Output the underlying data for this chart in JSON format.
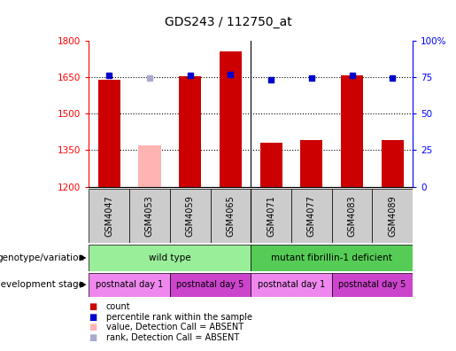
{
  "title": "GDS243 / 112750_at",
  "samples": [
    "GSM4047",
    "GSM4053",
    "GSM4059",
    "GSM4065",
    "GSM4071",
    "GSM4077",
    "GSM4083",
    "GSM4089"
  ],
  "bar_values": [
    1638,
    1370,
    1653,
    1755,
    1382,
    1393,
    1655,
    1390
  ],
  "bar_absent": [
    false,
    true,
    false,
    false,
    false,
    false,
    false,
    false
  ],
  "rank_values": [
    76,
    74,
    76,
    77,
    73,
    74,
    76,
    74
  ],
  "rank_absent": [
    false,
    true,
    false,
    false,
    false,
    false,
    false,
    false
  ],
  "ylim_left": [
    1200,
    1800
  ],
  "ylim_right": [
    0,
    100
  ],
  "yticks_left": [
    1200,
    1350,
    1500,
    1650,
    1800
  ],
  "yticks_right": [
    0,
    25,
    50,
    75,
    100
  ],
  "bar_color_normal": "#cc0000",
  "bar_color_absent": "#ffb3b3",
  "rank_color_normal": "#0000cc",
  "rank_color_absent": "#aaaacc",
  "bar_width": 0.55,
  "genotype_groups": [
    {
      "label": "wild type",
      "start": 0,
      "end": 3,
      "color": "#99ee99"
    },
    {
      "label": "mutant fibrillin-1 deficient",
      "start": 4,
      "end": 7,
      "color": "#55cc55"
    }
  ],
  "dev_stage_groups": [
    {
      "label": "postnatal day 1",
      "start": 0,
      "end": 1,
      "color": "#ee88ee"
    },
    {
      "label": "postnatal day 5",
      "start": 2,
      "end": 3,
      "color": "#cc44cc"
    },
    {
      "label": "postnatal day 1",
      "start": 4,
      "end": 5,
      "color": "#ee88ee"
    },
    {
      "label": "postnatal day 5",
      "start": 6,
      "end": 7,
      "color": "#cc44cc"
    }
  ],
  "legend_items": [
    {
      "label": "count",
      "color": "#cc0000"
    },
    {
      "label": "percentile rank within the sample",
      "color": "#0000cc"
    },
    {
      "label": "value, Detection Call = ABSENT",
      "color": "#ffb3b3"
    },
    {
      "label": "rank, Detection Call = ABSENT",
      "color": "#aaaacc"
    }
  ],
  "fig_width": 5.15,
  "fig_height": 3.96,
  "dpi": 100
}
